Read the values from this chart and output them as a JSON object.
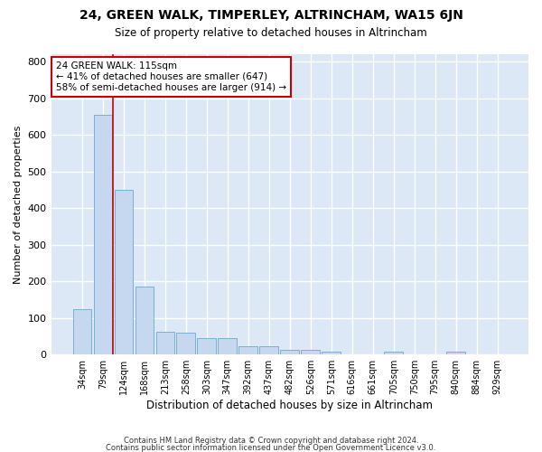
{
  "title1": "24, GREEN WALK, TIMPERLEY, ALTRINCHAM, WA15 6JN",
  "title2": "Size of property relative to detached houses in Altrincham",
  "xlabel": "Distribution of detached houses by size in Altrincham",
  "ylabel": "Number of detached properties",
  "categories": [
    "34sqm",
    "79sqm",
    "124sqm",
    "168sqm",
    "213sqm",
    "258sqm",
    "303sqm",
    "347sqm",
    "392sqm",
    "437sqm",
    "482sqm",
    "526sqm",
    "571sqm",
    "616sqm",
    "661sqm",
    "705sqm",
    "750sqm",
    "795sqm",
    "840sqm",
    "884sqm",
    "929sqm"
  ],
  "values": [
    125,
    655,
    450,
    185,
    62,
    60,
    45,
    44,
    22,
    22,
    13,
    13,
    9,
    0,
    0,
    7,
    0,
    0,
    8,
    0,
    0
  ],
  "bar_color": "#c5d8f0",
  "bar_edge_color": "#7aafd4",
  "red_line_bin": 1,
  "annotation_line1": "24 GREEN WALK: 115sqm",
  "annotation_line2": "← 41% of detached houses are smaller (647)",
  "annotation_line3": "58% of semi-detached houses are larger (914) →",
  "annotation_box_color": "#ffffff",
  "annotation_box_edge_color": "#cc0000",
  "footer1": "Contains HM Land Registry data © Crown copyright and database right 2024.",
  "footer2": "Contains public sector information licensed under the Open Government Licence v3.0.",
  "ylim": [
    0,
    820
  ],
  "background_color": "#dce8f5",
  "fig_background_color": "#ffffff",
  "grid_color": "#ffffff",
  "yticks": [
    0,
    100,
    200,
    300,
    400,
    500,
    600,
    700,
    800
  ]
}
